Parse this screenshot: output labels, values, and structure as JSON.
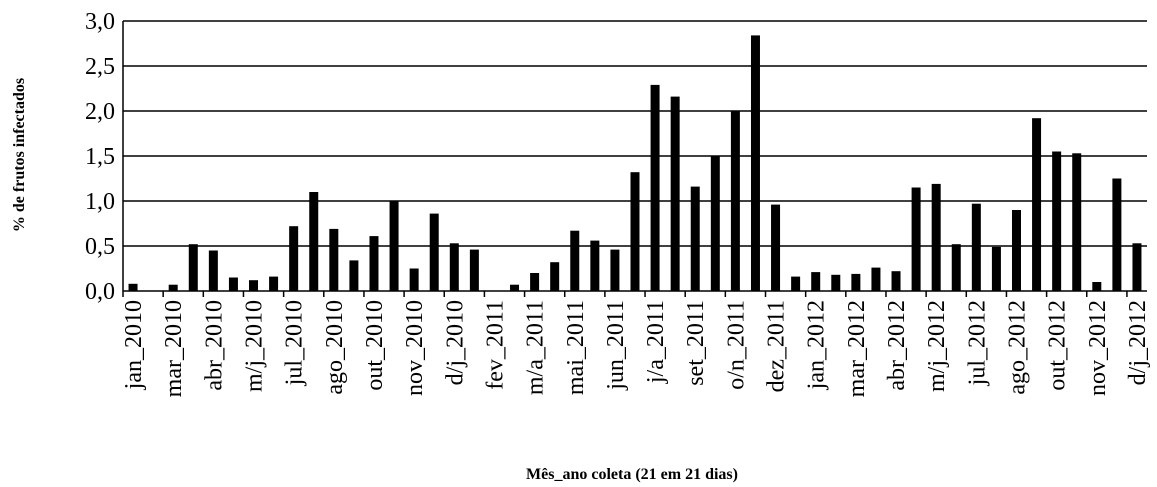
{
  "chart_data": {
    "type": "bar",
    "title": "",
    "xlabel": "Mês_ano coleta (21 em 21 dias)",
    "ylabel": "% de frutos infectados",
    "ylim": [
      0,
      3.0
    ],
    "yticks": [
      "0,0",
      "0,5",
      "1,0",
      "1,5",
      "2,0",
      "2,5",
      "3,0"
    ],
    "grid": "horizontal",
    "legend": "none",
    "bar_color": "#000000",
    "tick_labels": [
      "jan_2010",
      "mar_2010",
      "abr_2010",
      "m/j_2010",
      "jul_2010",
      "ago_2010",
      "out_2010",
      "nov_2010",
      "d/j_2010",
      "fev_2011",
      "m/a_2011",
      "mai_2011",
      "jun_2011",
      "j/a_2011",
      "set_2011",
      "o/n_2011",
      "dez_2011",
      "jan_2012",
      "mar_2012",
      "abr_2012",
      "m/j_2012",
      "jul_2012",
      "ago_2012",
      "out_2012",
      "nov_2012",
      "d/j_2012"
    ],
    "tick_every": 2,
    "values": [
      0.08,
      0,
      0.07,
      0.52,
      0.45,
      0.15,
      0.12,
      0.16,
      0.72,
      1.1,
      0.69,
      0.34,
      0.61,
      1.0,
      0.25,
      0.86,
      0.53,
      0.46,
      0,
      0.07,
      0.2,
      0.32,
      0.67,
      0.56,
      0.46,
      1.32,
      2.29,
      2.16,
      1.16,
      1.5,
      2.0,
      2.84,
      0.96,
      0.16,
      0.21,
      0.18,
      0.19,
      0.26,
      0.22,
      1.15,
      1.19,
      0.52,
      0.97,
      0.49,
      0.9,
      1.92,
      1.55,
      1.53,
      0.1,
      1.25,
      0.53
    ]
  }
}
